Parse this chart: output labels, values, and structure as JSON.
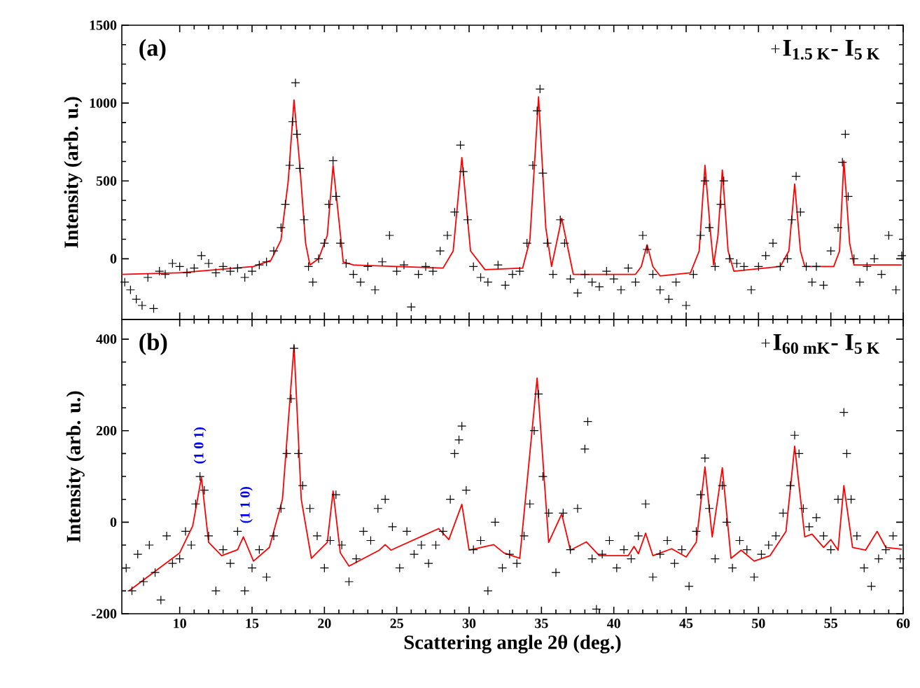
{
  "chart_data": [
    {
      "type": "scatter",
      "ylabel": "Intensity (arb. u.)",
      "xlim": [
        6,
        60
      ],
      "ylim": [
        -390,
        1500
      ],
      "xticks": [
        10,
        15,
        20,
        25,
        30,
        35,
        40,
        45,
        50,
        55,
        60
      ],
      "yticks": [
        0,
        500,
        1000,
        1500
      ],
      "tick_labels": "y",
      "legend": "top right",
      "annotations": [
        "(a)"
      ],
      "series": [
        {
          "name": "I$_{1.5 K}$- I$_{5 K}$",
          "marker": "cross",
          "color": "#000000",
          "x": [
            6.2,
            6.6,
            7.0,
            7.4,
            7.8,
            8.2,
            8.6,
            9,
            9.5,
            10,
            10.5,
            11,
            11.5,
            12,
            12.5,
            13,
            13.5,
            14,
            14.5,
            15,
            15.5,
            16,
            16.5,
            17,
            17.3,
            17.6,
            17.8,
            18,
            18.1,
            18.3,
            18.6,
            18.9,
            19.2,
            19.6,
            20,
            20.3,
            20.6,
            20.8,
            21.1,
            21.5,
            22,
            22.5,
            23,
            23.5,
            24,
            24.5,
            25,
            25.5,
            26,
            26.5,
            27,
            27.5,
            28,
            28.5,
            29,
            29.4,
            29.6,
            29.9,
            30.3,
            30.8,
            31.3,
            32,
            32.5,
            33,
            33.5,
            34,
            34.4,
            34.7,
            34.9,
            35.1,
            35.4,
            35.8,
            36.3,
            36.6,
            37,
            37.5,
            38,
            38.5,
            39,
            39.5,
            40,
            40.5,
            41,
            41.5,
            42,
            42.3,
            42.7,
            43.2,
            43.8,
            44.3,
            45,
            45.5,
            46,
            46.3,
            46.6,
            47,
            47.4,
            47.6,
            48,
            48.5,
            49,
            49.5,
            50,
            50.5,
            51,
            51.5,
            52,
            52.3,
            52.6,
            52.9,
            53.3,
            53.7,
            54,
            54.5,
            55,
            55.5,
            55.8,
            56,
            56.2,
            56.6,
            57,
            57.5,
            58,
            58.5,
            59,
            59.5,
            59.9
          ],
          "values": [
            -150,
            -200,
            -260,
            -300,
            -120,
            -320,
            -80,
            -100,
            -30,
            -50,
            -90,
            -60,
            20,
            -30,
            -90,
            -50,
            -80,
            -60,
            -120,
            -80,
            -40,
            -20,
            50,
            200,
            350,
            600,
            880,
            1130,
            800,
            580,
            250,
            -50,
            -150,
            0,
            100,
            350,
            630,
            400,
            100,
            -30,
            -100,
            -150,
            -50,
            -200,
            -20,
            150,
            -80,
            -40,
            -310,
            -100,
            -50,
            -80,
            50,
            150,
            300,
            730,
            560,
            250,
            -50,
            -120,
            -150,
            -40,
            -170,
            -100,
            -80,
            100,
            600,
            950,
            1090,
            550,
            100,
            -100,
            250,
            100,
            -130,
            -220,
            -100,
            -150,
            -180,
            -80,
            -130,
            -200,
            -60,
            -150,
            150,
            60,
            -100,
            -200,
            -260,
            -150,
            -300,
            -100,
            150,
            500,
            200,
            -50,
            350,
            500,
            0,
            -30,
            -50,
            -200,
            -50,
            20,
            100,
            -50,
            0,
            250,
            530,
            300,
            -50,
            -150,
            -50,
            -170,
            50,
            200,
            620,
            800,
            400,
            0,
            -150,
            -50,
            0,
            -100,
            150,
            -200,
            20
          ]
        },
        {
          "type": "line",
          "color": "#ff0000",
          "line_style": "solid",
          "x": [
            6.0,
            10,
            15.1,
            16.3,
            17.0,
            17.5,
            17.9,
            18.3,
            18.7,
            19.0,
            19.6,
            20.2,
            20.6,
            21.0,
            21.3,
            22,
            28.2,
            28.9,
            29.5,
            30.1,
            31.1,
            33.7,
            34.2,
            34.8,
            35.3,
            35.7,
            36.4,
            37.2,
            41.5,
            41.9,
            42.3,
            42.7,
            43.2,
            45.3,
            45.9,
            46.3,
            46.7,
            46.9,
            47.2,
            47.5,
            47.9,
            48.3,
            51.5,
            52.1,
            52.5,
            52.9,
            53.2,
            55.2,
            55.6,
            55.9,
            56.3,
            56.6,
            59.9
          ],
          "values": [
            -100,
            -90,
            -50,
            -10,
            120,
            500,
            1020,
            600,
            100,
            -40,
            0,
            150,
            600,
            250,
            -20,
            -40,
            -60,
            50,
            650,
            50,
            -70,
            -60,
            120,
            1040,
            200,
            -50,
            260,
            -100,
            -100,
            -50,
            90,
            -50,
            -110,
            -90,
            50,
            600,
            150,
            -40,
            150,
            570,
            50,
            -80,
            -50,
            50,
            480,
            50,
            -50,
            -50,
            50,
            630,
            100,
            -40,
            -40
          ],
          "marker": "none"
        }
      ]
    },
    {
      "type": "scatter",
      "xlabel": "Scattering angle 2θ (deg.)",
      "ylabel": "Intensity (arb. u.)",
      "xlim": [
        6,
        60
      ],
      "ylim": [
        -200,
        443
      ],
      "xticks": [
        10,
        15,
        20,
        25,
        30,
        35,
        40,
        45,
        50,
        55,
        60
      ],
      "yticks": [
        -200,
        0,
        200,
        400
      ],
      "legend": "top right",
      "annotations": [
        "(b)",
        {
          "text": "(1 0 1)",
          "x": 11.4,
          "y": 98
        },
        {
          "text": "(1 1 0)",
          "x": 14.6,
          "y": -32
        }
      ],
      "series": [
        {
          "name": "I$_{60 mK}$- I$_{5 K}$",
          "marker": "cross",
          "color": "#000000",
          "x": [
            6.3,
            6.7,
            7.1,
            7.5,
            7.9,
            8.3,
            8.7,
            9.1,
            9.5,
            10,
            10.4,
            10.8,
            11.1,
            11.4,
            11.7,
            12,
            12.5,
            13,
            13.5,
            14,
            14.5,
            15,
            15.5,
            16,
            16.5,
            17,
            17.4,
            17.7,
            17.9,
            18.2,
            18.5,
            19,
            19.5,
            20,
            20.4,
            20.8,
            21.2,
            21.7,
            22.2,
            22.7,
            23.2,
            23.7,
            24.2,
            24.7,
            25.2,
            25.7,
            26.2,
            26.7,
            27.2,
            27.7,
            28.2,
            28.7,
            29,
            29.3,
            29.5,
            29.8,
            30.3,
            30.8,
            31.3,
            31.8,
            32.3,
            32.8,
            33.3,
            33.8,
            34.2,
            34.5,
            34.8,
            35.1,
            35.5,
            36,
            36.5,
            37,
            37.5,
            38,
            38.2,
            38.5,
            38.8,
            39.2,
            39.7,
            40.2,
            40.7,
            41.2,
            41.7,
            42.2,
            42.7,
            43.2,
            43.7,
            44.2,
            44.7,
            45.2,
            45.7,
            46,
            46.3,
            46.6,
            47,
            47.5,
            47.8,
            48.2,
            48.7,
            49.2,
            49.7,
            50.2,
            50.7,
            51.2,
            51.7,
            52.2,
            52.5,
            52.8,
            53.1,
            53.5,
            54,
            54.5,
            55,
            55.5,
            55.9,
            56.1,
            56.4,
            56.8,
            57.3,
            57.8,
            58.3,
            58.8,
            59.3,
            59.8
          ],
          "values": [
            -100,
            -150,
            -70,
            -130,
            -50,
            -110,
            -170,
            -30,
            -90,
            -80,
            -20,
            -50,
            40,
            100,
            70,
            -30,
            -150,
            -60,
            -90,
            -20,
            -150,
            -100,
            -60,
            -120,
            -30,
            30,
            150,
            270,
            380,
            150,
            80,
            30,
            -30,
            -100,
            -40,
            60,
            -50,
            -130,
            -80,
            -20,
            -40,
            30,
            50,
            -10,
            -100,
            -20,
            -70,
            -50,
            -90,
            -50,
            -20,
            50,
            150,
            180,
            210,
            70,
            -60,
            -40,
            -150,
            0,
            -100,
            -70,
            -90,
            -30,
            40,
            200,
            280,
            100,
            20,
            -110,
            20,
            -60,
            30,
            160,
            220,
            -80,
            -190,
            -70,
            -40,
            -100,
            -60,
            -80,
            -30,
            40,
            -120,
            -70,
            -40,
            -90,
            -60,
            -140,
            -20,
            60,
            140,
            30,
            -80,
            80,
            0,
            -100,
            -40,
            -60,
            -120,
            -70,
            -50,
            -30,
            20,
            80,
            190,
            150,
            30,
            -10,
            10,
            -30,
            -60,
            50,
            240,
            150,
            50,
            -30,
            -100,
            -140,
            -80,
            -60,
            -30,
            -80
          ]
        },
        {
          "type": "line",
          "color": "#ff0000",
          "line_style": "solid",
          "x": [
            6.5,
            10,
            10.9,
            11.5,
            12,
            12.9,
            14,
            14.4,
            15.1,
            16.2,
            17.1,
            17.9,
            18.4,
            19.1,
            20.2,
            20.6,
            21.1,
            21.7,
            23.8,
            24.2,
            24.6,
            27.9,
            28.6,
            29.5,
            30,
            31.7,
            32.4,
            33.5,
            34.7,
            35.5,
            36.4,
            37,
            38.1,
            39,
            41,
            41.4,
            41.7,
            42.2,
            42.7,
            44,
            45,
            45.7,
            46.3,
            46.8,
            47.5,
            48.1,
            48.8,
            49.7,
            50.8,
            51.9,
            52.5,
            53.2,
            53.7,
            54.5,
            55,
            55.5,
            55.9,
            56.5,
            57.4,
            58.2,
            58.8,
            59.9
          ],
          "marker": "none",
          "values": [
            -150,
            -67,
            -8,
            98,
            -44,
            -73,
            -60,
            -32,
            -85,
            -55,
            50,
            386,
            50,
            -79,
            -44,
            68,
            -67,
            -96,
            -61,
            -49,
            -61,
            -14,
            -38,
            39,
            -61,
            -49,
            -67,
            -79,
            315,
            -44,
            18,
            -61,
            -43,
            -73,
            -73,
            -53,
            -69,
            -24,
            -73,
            -58,
            -76,
            -44,
            121,
            -32,
            119,
            -79,
            -61,
            -85,
            -73,
            -20,
            166,
            -32,
            -26,
            -55,
            -38,
            -61,
            80,
            -55,
            -61,
            -20,
            -55,
            -59
          ]
        }
      ]
    }
  ]
}
